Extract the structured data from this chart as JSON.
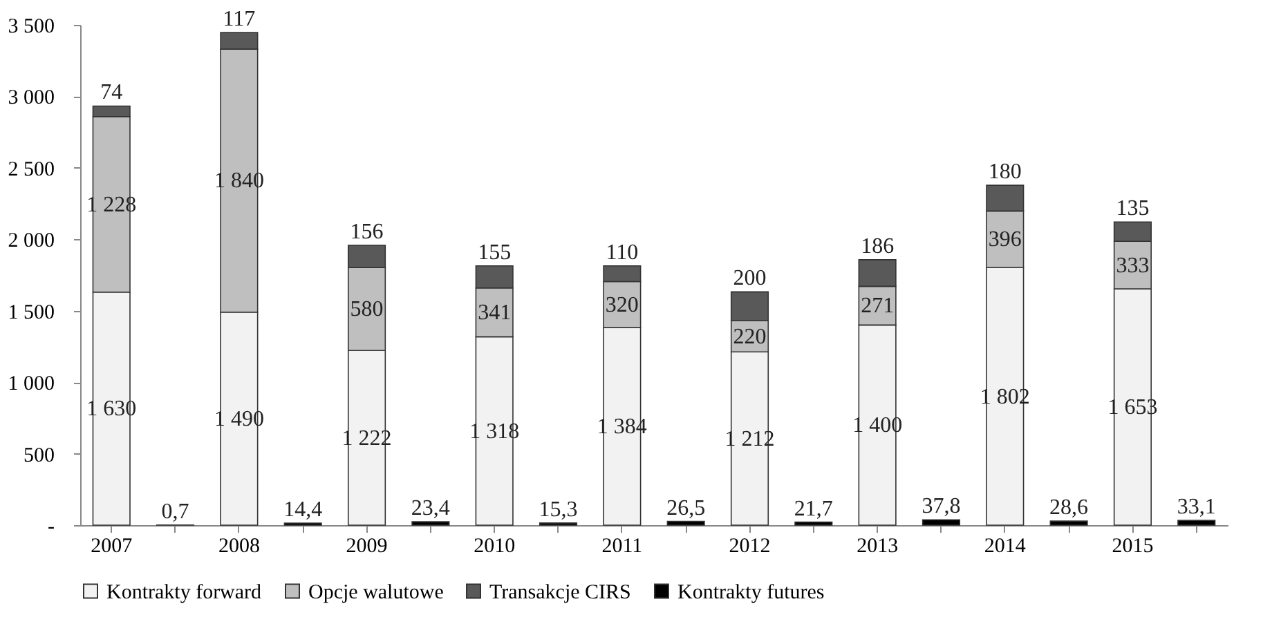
{
  "chart_data": {
    "type": "bar",
    "stacked": true,
    "categories": [
      "2007",
      null,
      "2008",
      null,
      "2009",
      null,
      "2010",
      null,
      "2011",
      null,
      "2012",
      null,
      "2013",
      null,
      "2014",
      null,
      "2015",
      null
    ],
    "series": [
      {
        "name": "Kontrakty forward",
        "color": "#f2f2f2",
        "values": [
          1630,
          null,
          1490,
          null,
          1222,
          null,
          1318,
          null,
          1384,
          null,
          1212,
          null,
          1400,
          null,
          1802,
          null,
          1653,
          null
        ],
        "value_labels": [
          "1 630",
          null,
          "1 490",
          null,
          "1 222",
          null,
          "1 318",
          null,
          "1 384",
          null,
          "1 212",
          null,
          "1 400",
          null,
          "1 802",
          null,
          "1 653",
          null
        ]
      },
      {
        "name": "Opcje walutowe",
        "color": "#bfbfbf",
        "values": [
          1228,
          null,
          1840,
          null,
          580,
          null,
          341,
          null,
          320,
          null,
          220,
          null,
          271,
          null,
          396,
          null,
          333,
          null
        ],
        "value_labels": [
          "1 228",
          null,
          "1 840",
          null,
          "580",
          null,
          "341",
          null,
          "320",
          null,
          "220",
          null,
          "271",
          null,
          "396",
          null,
          "333",
          null
        ]
      },
      {
        "name": "Transakcje CIRS",
        "color": "#595959",
        "values": [
          74,
          null,
          117,
          null,
          156,
          null,
          155,
          null,
          110,
          null,
          200,
          null,
          186,
          null,
          180,
          null,
          135,
          null
        ],
        "value_labels": [
          "74",
          null,
          "117",
          null,
          "156",
          null,
          "155",
          null,
          "110",
          null,
          "200",
          null,
          "186",
          null,
          "180",
          null,
          "135",
          null
        ]
      },
      {
        "name": "Kontrakty futures",
        "color": "#000000",
        "values": [
          null,
          0.7,
          null,
          14.4,
          null,
          23.4,
          null,
          15.3,
          null,
          26.5,
          null,
          21.7,
          null,
          37.8,
          null,
          28.6,
          null,
          33.1
        ],
        "value_labels": [
          null,
          "0,7",
          null,
          "14,4",
          null,
          "23,4",
          null,
          "15,3",
          null,
          "26,5",
          null,
          "21,7",
          null,
          "37,8",
          null,
          "28,6",
          null,
          "33,1"
        ]
      }
    ],
    "ylim": [
      0,
      3500
    ],
    "yticks": [
      {
        "value": 0,
        "label": "-"
      },
      500,
      {
        "value": 1000,
        "label": "1 000"
      },
      {
        "value": 1500,
        "label": "1 500"
      },
      {
        "value": 2000,
        "label": "2 000"
      },
      {
        "value": 2500,
        "label": "2 500"
      },
      {
        "value": 3000,
        "label": "3 000"
      },
      {
        "value": 3500,
        "label": "3 500"
      }
    ],
    "grid": false,
    "legend": "bottom"
  }
}
